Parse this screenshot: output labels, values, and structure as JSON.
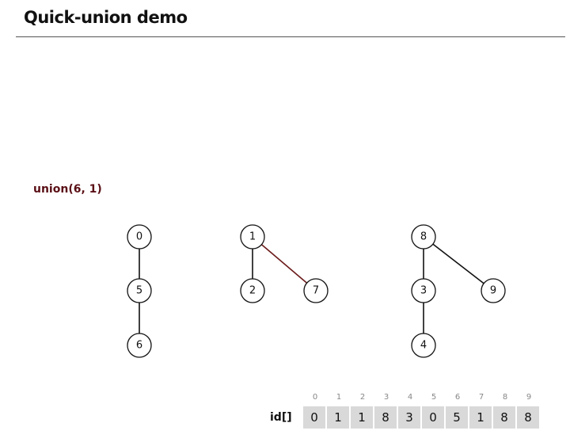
{
  "title": "Quick-union demo",
  "operation": "union(6, 1)",
  "array_label": "id[]",
  "indices": [
    "0",
    "1",
    "2",
    "3",
    "4",
    "5",
    "6",
    "7",
    "8",
    "9"
  ],
  "id_values": [
    "0",
    "1",
    "1",
    "8",
    "3",
    "0",
    "5",
    "1",
    "8",
    "8"
  ],
  "nodes": {
    "n0": "0",
    "n1": "1",
    "n2": "2",
    "n3": "3",
    "n4": "4",
    "n5": "5",
    "n6": "6",
    "n7": "7",
    "n8": "8",
    "n9": "9"
  }
}
